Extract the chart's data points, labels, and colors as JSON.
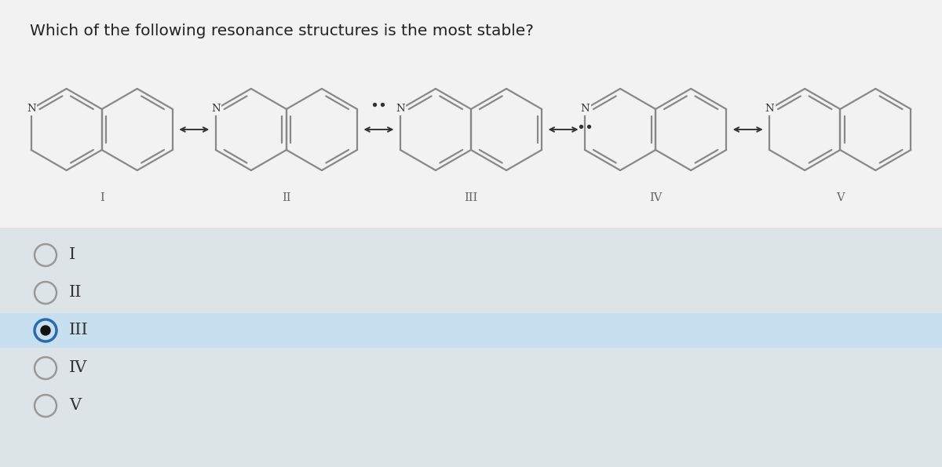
{
  "title": "Which of the following resonance structures is the most stable?",
  "title_fontsize": 14.5,
  "bg_top": "#f2f2f2",
  "bg_bottom": "#dde4e8",
  "selected_bg": "#c8dff0",
  "options": [
    "I",
    "II",
    "III",
    "IV",
    "V"
  ],
  "selected_option": "III",
  "option_circle_color": "#999999",
  "selected_circle_color": "#2a6aad",
  "selected_dot_color": "#111111",
  "option_text_color": "#333333",
  "option_fontsize": 15,
  "structure_labels": [
    "I",
    "II",
    "III",
    "IV",
    "V"
  ],
  "label_fontsize": 10.5,
  "hex_color": "#888888",
  "hex_lw": 1.6,
  "N_fontsize": 9.5
}
